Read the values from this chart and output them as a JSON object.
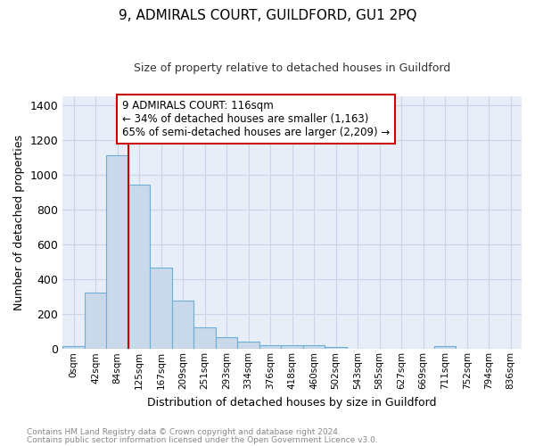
{
  "title": "9, ADMIRALS COURT, GUILDFORD, GU1 2PQ",
  "subtitle": "Size of property relative to detached houses in Guildford",
  "xlabel": "Distribution of detached houses by size in Guildford",
  "ylabel": "Number of detached properties",
  "footnote1": "Contains HM Land Registry data © Crown copyright and database right 2024.",
  "footnote2": "Contains public sector information licensed under the Open Government Licence v3.0.",
  "bar_labels": [
    "0sqm",
    "42sqm",
    "84sqm",
    "125sqm",
    "167sqm",
    "209sqm",
    "251sqm",
    "293sqm",
    "334sqm",
    "376sqm",
    "418sqm",
    "460sqm",
    "502sqm",
    "543sqm",
    "585sqm",
    "627sqm",
    "669sqm",
    "711sqm",
    "752sqm",
    "794sqm",
    "836sqm"
  ],
  "bar_heights": [
    15,
    325,
    1110,
    940,
    465,
    280,
    125,
    68,
    42,
    20,
    22,
    20,
    14,
    0,
    0,
    0,
    0,
    15,
    0,
    0,
    0
  ],
  "bar_color": "#c9d9ea",
  "bar_edge_color": "#6baed6",
  "red_line_x": 2.5,
  "red_line_color": "#cc0000",
  "annotation_box_text": "9 ADMIRALS COURT: 116sqm\n← 34% of detached houses are smaller (1,163)\n65% of semi-detached houses are larger (2,209) →",
  "ylim": [
    0,
    1450
  ],
  "yticks": [
    0,
    200,
    400,
    600,
    800,
    1000,
    1200,
    1400
  ],
  "grid_color": "#c8d4e8",
  "bg_color": "#e8eef8",
  "title_fontsize": 11,
  "subtitle_fontsize": 9,
  "ylabel_fontsize": 9,
  "xlabel_fontsize": 9,
  "annotation_fontsize": 8.5,
  "footnote_fontsize": 6.5,
  "footnote_color": "#888888"
}
